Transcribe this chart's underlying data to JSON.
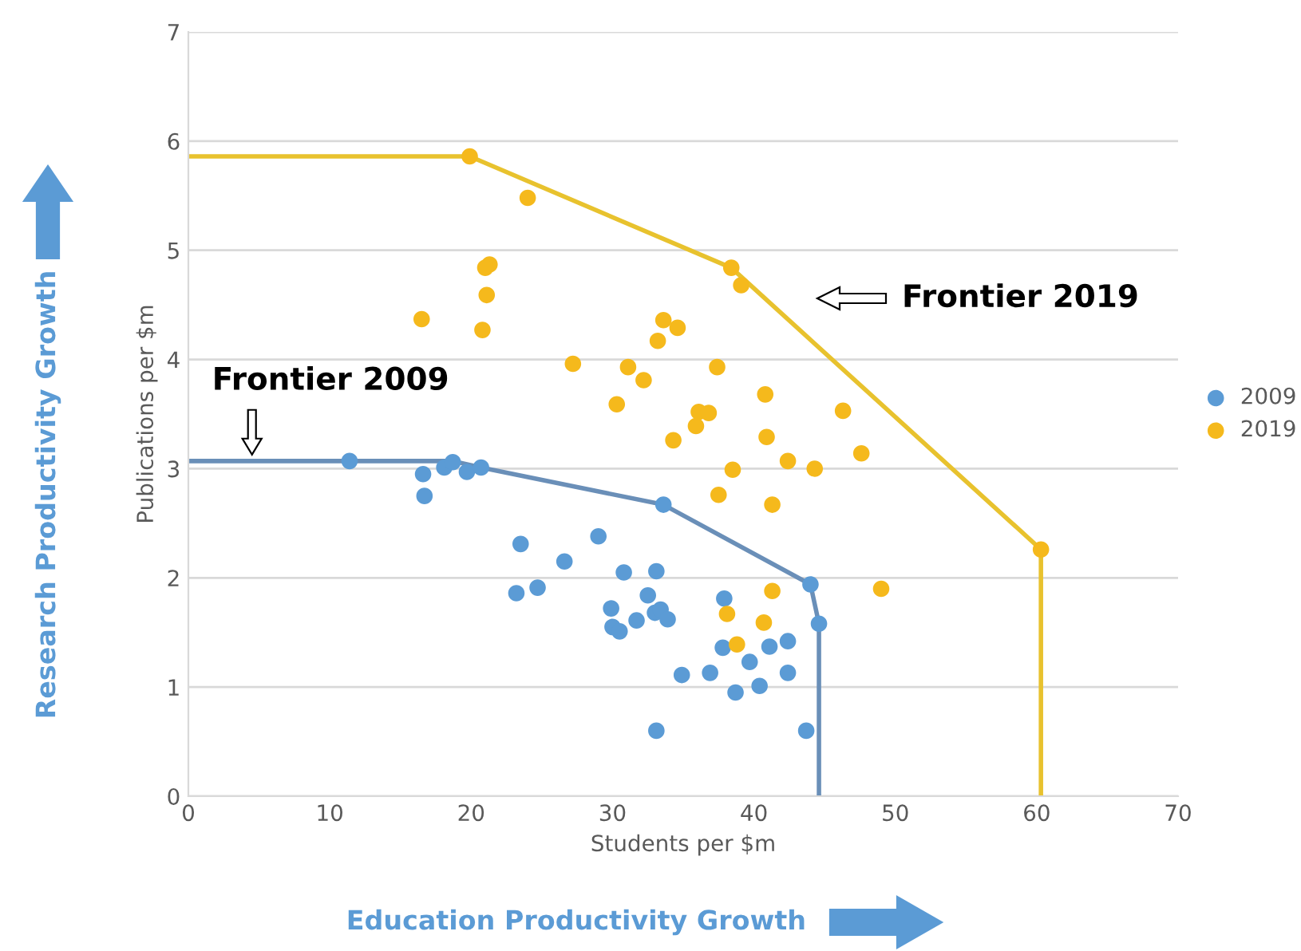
{
  "chart_data": {
    "type": "scatter",
    "xlabel": "Students per $m",
    "ylabel": "Publications per $m",
    "xlim": [
      0,
      70
    ],
    "xticks": [
      0,
      10,
      20,
      30,
      40,
      50,
      60,
      70
    ],
    "ylim": [
      0,
      7
    ],
    "yticks": [
      0,
      1,
      2,
      3,
      4,
      5,
      6,
      7
    ],
    "grid": "y",
    "legend": "right",
    "marker": "circle",
    "series": [
      {
        "type": "line",
        "marker": "none",
        "color": "#6a8fb8",
        "x": [
          0,
          18.7,
          20.7,
          33.6,
          44.0,
          44.6,
          44.6
        ],
        "values": [
          3.07,
          3.07,
          3.01,
          2.67,
          1.94,
          1.58,
          0
        ]
      },
      {
        "type": "line",
        "marker": "none",
        "color": "#e8c22e",
        "x": [
          0,
          19.9,
          38.4,
          60.3,
          60.3
        ],
        "values": [
          5.86,
          5.86,
          4.84,
          2.26,
          0
        ]
      },
      {
        "name": "2009",
        "color": "#5b9bd5",
        "x": [
          11.4,
          16.6,
          16.7,
          18.1,
          18.7,
          19.7,
          20.7,
          23.5,
          23.2,
          24.7,
          26.6,
          29.0,
          29.9,
          30.0,
          30.5,
          30.8,
          31.7,
          33.1,
          32.5,
          33.0,
          33.4,
          33.9,
          33.6,
          33.1,
          34.9,
          36.9,
          37.9,
          37.8,
          39.7,
          38.7,
          40.4,
          41.1,
          42.4,
          42.4,
          44.0,
          44.6,
          43.7
        ],
        "values": [
          3.07,
          2.95,
          2.75,
          3.01,
          3.06,
          2.97,
          3.01,
          2.31,
          1.86,
          1.91,
          2.15,
          2.38,
          1.72,
          1.55,
          1.51,
          2.05,
          1.61,
          2.06,
          1.84,
          1.68,
          1.71,
          1.62,
          2.67,
          0.6,
          1.11,
          1.13,
          1.81,
          1.36,
          1.23,
          0.95,
          1.01,
          1.37,
          1.42,
          1.13,
          1.94,
          1.58,
          0.6
        ]
      },
      {
        "name": "2019",
        "color": "#f5b91c",
        "x": [
          19.9,
          24.0,
          16.5,
          21.3,
          21.0,
          21.1,
          20.8,
          27.2,
          30.3,
          31.1,
          32.2,
          33.2,
          33.6,
          34.6,
          34.3,
          36.1,
          35.9,
          36.8,
          37.4,
          37.5,
          38.5,
          38.4,
          39.1,
          40.8,
          40.9,
          42.4,
          41.3,
          44.3,
          46.3,
          47.6,
          60.3,
          49.0,
          38.1,
          41.3,
          38.8,
          40.7
        ],
        "values": [
          5.86,
          5.48,
          4.37,
          4.87,
          4.84,
          4.59,
          4.27,
          3.96,
          3.59,
          3.93,
          3.81,
          4.17,
          4.36,
          4.29,
          3.26,
          3.52,
          3.39,
          3.51,
          3.93,
          2.76,
          2.99,
          4.84,
          4.68,
          3.68,
          3.29,
          3.07,
          2.67,
          3.0,
          3.53,
          3.14,
          2.26,
          1.9,
          1.67,
          1.88,
          1.39,
          1.59
        ]
      }
    ],
    "annotations": [
      {
        "text": "Frontier 2009",
        "x": 4.5,
        "y": 3.1
      },
      "Frontier 2019",
      "Research Productivity Growth",
      "Education Productivity Growth"
    ]
  }
}
